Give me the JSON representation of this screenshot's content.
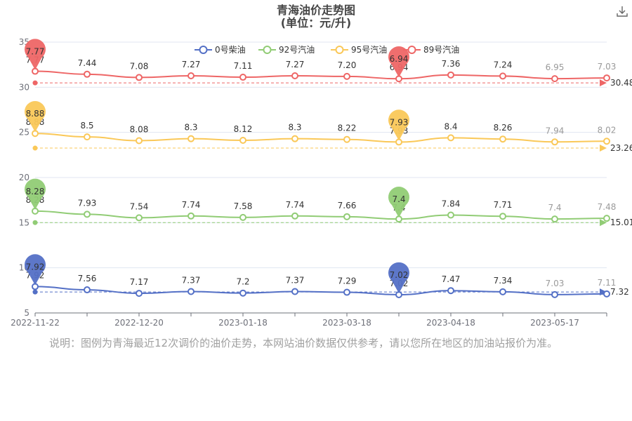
{
  "chart_data": {
    "type": "line",
    "title": "青海油价走势图",
    "subtitle": "(单位：元/升)",
    "x_tick_labels": [
      "2022-11-22",
      "2022-12-20",
      "2023-01-18",
      "2023-03-18",
      "2023-04-18",
      "2023-05-17"
    ],
    "y_tick_labels": [
      "5",
      "10",
      "15",
      "20",
      "25",
      "30",
      "35"
    ],
    "ylim": [
      5,
      35
    ],
    "grid": true,
    "legend_position": "top",
    "series": [
      {
        "name": "0号柴油",
        "color": "#5470c6",
        "labels": [
          "7.92",
          "7.56",
          "7.17",
          "7.37",
          "7.2",
          "7.37",
          "7.29",
          "7.02",
          "7.47",
          "7.34",
          "7.03",
          "7.11"
        ],
        "values": [
          7.92,
          7.56,
          7.17,
          7.37,
          7.2,
          7.37,
          7.29,
          7.02,
          7.47,
          7.34,
          7.03,
          7.11
        ],
        "plotted": [
          7.92,
          7.56,
          7.17,
          7.37,
          7.2,
          7.37,
          7.29,
          7.02,
          7.47,
          7.34,
          7.03,
          7.11
        ],
        "max_label": "7.92",
        "min_label": "7.02",
        "average_label": "7.32"
      },
      {
        "name": "92号汽油",
        "color": "#91cc75",
        "labels": [
          "8.28",
          "7.93",
          "7.54",
          "7.74",
          "7.58",
          "7.74",
          "7.66",
          "7.4",
          "7.84",
          "7.71",
          "7.4",
          "7.48"
        ],
        "values": [
          8.28,
          7.93,
          7.54,
          7.74,
          7.58,
          7.74,
          7.66,
          7.4,
          7.84,
          7.71,
          7.4,
          7.48
        ],
        "plotted": [
          16.28,
          15.93,
          15.54,
          15.74,
          15.58,
          15.74,
          15.66,
          15.4,
          15.84,
          15.71,
          15.4,
          15.48
        ],
        "max_label": "8.28",
        "min_label": "7.4",
        "average_label": "15.01"
      },
      {
        "name": "95号汽油",
        "color": "#fac858",
        "labels": [
          "8.88",
          "8.5",
          "8.08",
          "8.3",
          "8.12",
          "8.3",
          "8.22",
          "7.93",
          "8.4",
          "8.26",
          "7.94",
          "8.02"
        ],
        "values": [
          8.88,
          8.5,
          8.08,
          8.3,
          8.12,
          8.3,
          8.22,
          7.93,
          8.4,
          8.26,
          7.94,
          8.02
        ],
        "plotted": [
          24.88,
          24.5,
          24.08,
          24.3,
          24.12,
          24.3,
          24.22,
          23.93,
          24.4,
          24.26,
          23.94,
          24.02
        ],
        "max_label": "8.88",
        "min_label": "7.93",
        "average_label": "23.26"
      },
      {
        "name": "89号汽油",
        "color": "#ee6666",
        "labels": [
          "7.77",
          "7.44",
          "7.08",
          "7.27",
          "7.11",
          "7.27",
          "7.20",
          "6.94",
          "7.36",
          "7.24",
          "6.95",
          "7.03"
        ],
        "values": [
          7.77,
          7.44,
          7.08,
          7.27,
          7.11,
          7.27,
          7.2,
          6.94,
          7.36,
          7.24,
          6.95,
          7.03
        ],
        "plotted": [
          31.77,
          31.44,
          31.08,
          31.27,
          31.11,
          31.27,
          31.2,
          30.94,
          31.36,
          31.24,
          30.95,
          31.03
        ],
        "max_label": "7.77",
        "min_label": "6.94",
        "average_label": "30.48"
      }
    ]
  },
  "note": "说明：图例为青海最近12次调价的油价走势，本网站油价数据仅供参考，请以您所在地区的加油站报价为准。",
  "toolbar": {
    "download_icon": "download-icon"
  }
}
